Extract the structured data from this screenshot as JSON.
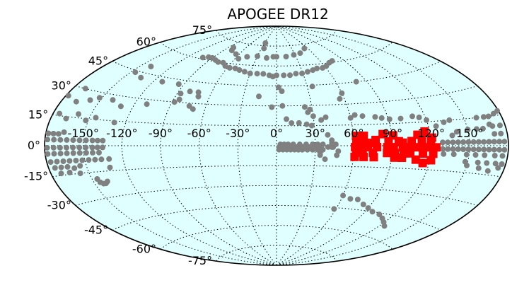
{
  "chart_data": {
    "type": "scatter",
    "title": "APOGEE DR12",
    "projection": "aitoff",
    "background_color": "#e0ffff",
    "grid": true,
    "lon_ticks": [
      -150,
      -120,
      -90,
      -60,
      -30,
      0,
      30,
      60,
      90,
      120,
      150
    ],
    "lon_tick_labels": [
      "-150°",
      "-120°",
      "-90°",
      "-60°",
      "-30°",
      "0°",
      "30°",
      "60°",
      "90°",
      "120°",
      "150°"
    ],
    "lat_ticks": [
      75,
      60,
      45,
      30,
      15,
      0,
      -15,
      -30,
      -45,
      -60,
      -75
    ],
    "lat_tick_labels": [
      "75°",
      "60°",
      "45°",
      "30°",
      "15°",
      "0°",
      "-15°",
      "-30°",
      "-45°",
      "-60°",
      "-75°"
    ],
    "series": [
      {
        "color": "#808080",
        "marker": "circle",
        "points": [
          [
            -178,
            6
          ],
          [
            -174,
            6
          ],
          [
            -170,
            6
          ],
          [
            -166,
            7
          ],
          [
            -178,
            3
          ],
          [
            -173,
            3
          ],
          [
            -168,
            3
          ],
          [
            -163,
            3
          ],
          [
            -158,
            3
          ],
          [
            -153,
            3
          ],
          [
            -148,
            3
          ],
          [
            -143,
            3
          ],
          [
            -139,
            3
          ],
          [
            -135,
            3
          ],
          [
            -178,
            -1
          ],
          [
            -173,
            -1
          ],
          [
            -168,
            -1
          ],
          [
            -163,
            -1
          ],
          [
            -158,
            -1
          ],
          [
            -153,
            -1
          ],
          [
            -148,
            -1
          ],
          [
            -143,
            -1
          ],
          [
            -139,
            -1
          ],
          [
            -135,
            -1
          ],
          [
            -178,
            -4
          ],
          [
            -173,
            -4
          ],
          [
            -168,
            -4
          ],
          [
            -163,
            -4
          ],
          [
            -158,
            -4
          ],
          [
            -153,
            -4
          ],
          [
            -148,
            -4
          ],
          [
            -143,
            -4
          ],
          [
            -138,
            -4
          ],
          [
            -177,
            -8
          ],
          [
            -172,
            -8
          ],
          [
            -167,
            -8
          ],
          [
            -162,
            -8
          ],
          [
            -157,
            -8
          ],
          [
            -152,
            -8
          ],
          [
            -147,
            -8
          ],
          [
            -142,
            -8
          ],
          [
            -137,
            -8
          ],
          [
            -131,
            -8
          ],
          [
            -175,
            -11
          ],
          [
            -170,
            -11
          ],
          [
            -165,
            -11
          ],
          [
            -160,
            -12
          ],
          [
            -155,
            -11
          ],
          [
            -132,
            -13
          ],
          [
            -172,
            -14
          ],
          [
            -165,
            -14
          ],
          [
            -157,
            -15
          ],
          [
            -175,
            16
          ],
          [
            -168,
            14
          ],
          [
            -160,
            17
          ],
          [
            -152,
            14
          ],
          [
            -145,
            16
          ],
          [
            -129,
            14
          ],
          [
            -146,
            -19
          ],
          [
            -145,
            -21
          ],
          [
            -143,
            -22
          ],
          [
            -141,
            -22
          ],
          [
            -139,
            -21
          ],
          [
            -158,
            25
          ],
          [
            -152,
            27
          ],
          [
            -140,
            27
          ],
          [
            -130,
            24
          ],
          [
            -110,
            27
          ],
          [
            -112,
            42
          ],
          [
            -135,
            42
          ],
          [
            -140,
            49
          ],
          [
            -146,
            44
          ],
          [
            -168,
            23
          ],
          [
            -178,
            25
          ],
          [
            -170,
            30
          ],
          [
            -102,
            61
          ],
          [
            -96,
            62
          ],
          [
            -90,
            62
          ],
          [
            -83,
            61
          ],
          [
            -77,
            60
          ],
          [
            -70,
            60
          ],
          [
            -64,
            58
          ],
          [
            -57,
            57
          ],
          [
            -50,
            57
          ],
          [
            -44,
            56
          ],
          [
            -37,
            55
          ],
          [
            -30,
            54
          ],
          [
            -22,
            54
          ],
          [
            -15,
            54
          ],
          [
            -8,
            53
          ],
          [
            0,
            53
          ],
          [
            8,
            53
          ],
          [
            15,
            53
          ],
          [
            22,
            54
          ],
          [
            29,
            54
          ],
          [
            36,
            55
          ],
          [
            43,
            56
          ],
          [
            49,
            57
          ],
          [
            56,
            57
          ],
          [
            62,
            58
          ],
          [
            69,
            60
          ],
          [
            75,
            61
          ],
          [
            -95,
            42
          ],
          [
            -87,
            36
          ],
          [
            -85,
            32
          ],
          [
            -80,
            38
          ],
          [
            -72,
            38
          ],
          [
            -70,
            35
          ],
          [
            -74,
            28
          ],
          [
            -70,
            26
          ],
          [
            -88,
            30
          ],
          [
            -82,
            71
          ],
          [
            -78,
            69
          ],
          [
            -65,
            67
          ],
          [
            -55,
            64
          ],
          [
            -45,
            66
          ],
          [
            -30,
            67
          ],
          [
            -15,
            66
          ],
          [
            -5,
            67
          ],
          [
            0,
            67
          ],
          [
            15,
            67
          ],
          [
            28,
            68
          ],
          [
            40,
            69
          ],
          [
            54,
            72
          ],
          [
            -25,
            73
          ],
          [
            -28,
            77
          ],
          [
            5,
            41
          ],
          [
            -4,
            29
          ],
          [
            5,
            30
          ],
          [
            24,
            29
          ],
          [
            26,
            25
          ],
          [
            28,
            27
          ],
          [
            30,
            22
          ],
          [
            36,
            19
          ],
          [
            40,
            21
          ],
          [
            35,
            44
          ],
          [
            56,
            34
          ],
          [
            60,
            38
          ],
          [
            80,
            45
          ],
          [
            60,
            20
          ],
          [
            64,
            22
          ],
          [
            70,
            21
          ],
          [
            80,
            20
          ],
          [
            85,
            19
          ],
          [
            91,
            18
          ],
          [
            100,
            18
          ],
          [
            110,
            19
          ],
          [
            115,
            18
          ],
          [
            120,
            16
          ],
          [
            126,
            12
          ],
          [
            133,
            14
          ],
          [
            138,
            15
          ],
          [
            -16,
            37
          ],
          [
            -4,
            52
          ],
          [
            2,
            44
          ],
          [
            8,
            20
          ],
          [
            12,
            17
          ],
          [
            18,
            17
          ],
          [
            24,
            16
          ],
          [
            28,
            15
          ],
          [
            2,
            -1
          ],
          [
            4,
            -1
          ],
          [
            6,
            -1
          ],
          [
            8,
            -1
          ],
          [
            10,
            -1
          ],
          [
            12,
            -1
          ],
          [
            14,
            -1
          ],
          [
            16,
            -1
          ],
          [
            18,
            -1
          ],
          [
            20,
            -1
          ],
          [
            22,
            -1
          ],
          [
            24,
            -1
          ],
          [
            26,
            -1
          ],
          [
            28,
            -1
          ],
          [
            30,
            -1
          ],
          [
            33,
            -1
          ],
          [
            2,
            -3
          ],
          [
            5,
            -3
          ],
          [
            8,
            -3
          ],
          [
            11,
            -3
          ],
          [
            14,
            -3
          ],
          [
            17,
            -3
          ],
          [
            20,
            -3
          ],
          [
            24,
            -3
          ],
          [
            28,
            -3
          ],
          [
            32,
            -3
          ],
          [
            36,
            -3
          ],
          [
            3,
            1
          ],
          [
            6,
            1
          ],
          [
            9,
            1
          ],
          [
            13,
            1
          ],
          [
            18,
            1
          ],
          [
            23,
            1
          ],
          [
            28,
            1
          ],
          [
            32,
            1
          ],
          [
            36,
            1
          ],
          [
            34,
            -5
          ],
          [
            34,
            -7
          ],
          [
            38,
            -10
          ],
          [
            40,
            -1
          ],
          [
            43,
            -1
          ],
          [
            46,
            1
          ],
          [
            48,
            -4
          ],
          [
            47,
            -7
          ],
          [
            43,
            4
          ],
          [
            40,
            8
          ],
          [
            43,
            2
          ],
          [
            44,
            -1
          ],
          [
            129,
            -2
          ],
          [
            133,
            -2
          ],
          [
            137,
            -2
          ],
          [
            141,
            -2
          ],
          [
            145,
            -2
          ],
          [
            149,
            -2
          ],
          [
            153,
            -2
          ],
          [
            157,
            -2
          ],
          [
            161,
            -2
          ],
          [
            165,
            -2
          ],
          [
            169,
            -2
          ],
          [
            173,
            -2
          ],
          [
            177,
            -2
          ],
          [
            129,
            2
          ],
          [
            133,
            2
          ],
          [
            137,
            2
          ],
          [
            141,
            2
          ],
          [
            145,
            2
          ],
          [
            149,
            2
          ],
          [
            153,
            2
          ],
          [
            157,
            2
          ],
          [
            161,
            2
          ],
          [
            165,
            2
          ],
          [
            169,
            2
          ],
          [
            173,
            2
          ],
          [
            177,
            2
          ],
          [
            130,
            -5
          ],
          [
            138,
            -5
          ],
          [
            148,
            -5
          ],
          [
            155,
            -5
          ],
          [
            162,
            -5
          ],
          [
            170,
            -5
          ],
          [
            176,
            -5
          ],
          [
            148,
            -9
          ],
          [
            158,
            -9
          ],
          [
            165,
            -9
          ],
          [
            172,
            -9
          ],
          [
            177,
            -9
          ],
          [
            150,
            -11
          ],
          [
            160,
            -12
          ],
          [
            168,
            -13
          ],
          [
            175,
            -11
          ],
          [
            137,
            6
          ],
          [
            141,
            8
          ],
          [
            150,
            9
          ],
          [
            157,
            9
          ],
          [
            162,
            9
          ],
          [
            170,
            10
          ],
          [
            176,
            10
          ],
          [
            168,
            11
          ],
          [
            160,
            15
          ],
          [
            166,
            15
          ],
          [
            170,
            15
          ],
          [
            175,
            16
          ],
          [
            179,
            17
          ],
          [
            170,
            6
          ],
          [
            175,
            6
          ],
          [
            60,
            -36
          ],
          [
            68,
            -38
          ],
          [
            75,
            -38
          ],
          [
            83,
            -41
          ],
          [
            90,
            -43
          ],
          [
            97,
            -45
          ],
          [
            106,
            -46
          ],
          [
            113,
            -48
          ],
          [
            119,
            -50
          ],
          [
            125,
            -52
          ],
          [
            58,
            -46
          ]
        ]
      },
      {
        "color": "#ff0000",
        "marker": "square",
        "points": [
          [
            62,
            7
          ],
          [
            68,
            7
          ],
          [
            83,
            8
          ],
          [
            91,
            7
          ],
          [
            110,
            7
          ],
          [
            116,
            9
          ],
          [
            77,
            4
          ],
          [
            98,
            2
          ],
          [
            120,
            3
          ],
          [
            62,
            3
          ],
          [
            67,
            3
          ],
          [
            72,
            2
          ],
          [
            87,
            3
          ],
          [
            95,
            3
          ],
          [
            105,
            3
          ],
          [
            113,
            4
          ],
          [
            121,
            5
          ],
          [
            61,
            -1
          ],
          [
            66,
            -1
          ],
          [
            71,
            -1
          ],
          [
            78,
            -1
          ],
          [
            86,
            -1
          ],
          [
            91,
            -1
          ],
          [
            98,
            -1
          ],
          [
            104,
            -1
          ],
          [
            108,
            -1
          ],
          [
            113,
            -1
          ],
          [
            118,
            -1
          ],
          [
            124,
            -1
          ],
          [
            62,
            -5
          ],
          [
            67,
            -5
          ],
          [
            75,
            -5
          ],
          [
            86,
            -5
          ],
          [
            92,
            -5
          ],
          [
            99,
            -5
          ],
          [
            104,
            -5
          ],
          [
            114,
            -5
          ],
          [
            122,
            -5
          ],
          [
            61,
            -8
          ],
          [
            68,
            -8
          ],
          [
            76,
            -8
          ],
          [
            92,
            -8
          ],
          [
            98,
            -8
          ],
          [
            109,
            -9
          ],
          [
            121,
            -9
          ],
          [
            115,
            -11
          ]
        ]
      }
    ]
  }
}
